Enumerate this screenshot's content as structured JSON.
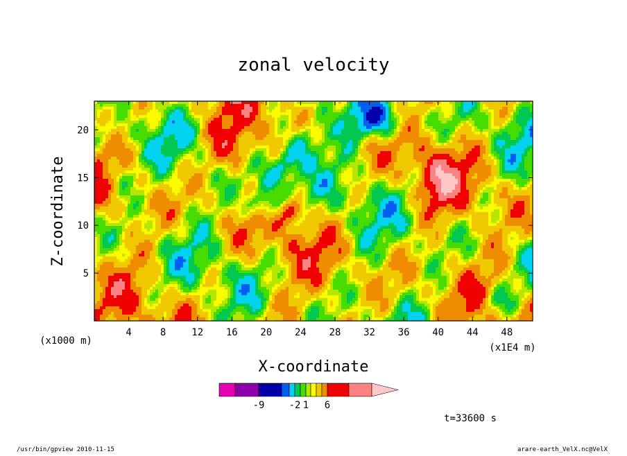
{
  "chart_data": {
    "type": "heatmap",
    "title": "zonal velocity",
    "xlabel": "X-coordinate",
    "ylabel": "Z-coordinate",
    "x_unit": "(x1E4 m)",
    "z_unit": "(x1000 m)",
    "xlim": [
      0,
      51
    ],
    "ylim": [
      0,
      23
    ],
    "x_ticks": [
      4,
      8,
      12,
      16,
      20,
      24,
      28,
      32,
      36,
      40,
      44,
      48
    ],
    "y_ticks": [
      5,
      10,
      15,
      20
    ],
    "colorbar": {
      "colors": [
        "#e600b4",
        "#8c00aa",
        "#0000aa",
        "#005ff0",
        "#00d2f0",
        "#00c850",
        "#46dc00",
        "#b4e600",
        "#fafa00",
        "#f0c800",
        "#f08c00",
        "#f00000",
        "#ff8282",
        "#ffc8c8"
      ],
      "tick_labels": [
        "-9",
        "-2",
        "1",
        "6"
      ]
    },
    "time_label": "t=33600 s"
  },
  "footer": {
    "left": "/usr/bin/gpview  2010-11-15",
    "right": "arare-earth_VelX.nc@VelX"
  },
  "colors": {
    "deep_blue": "#0000aa",
    "blue": "#005ff0",
    "cyan": "#00d2f0",
    "green": "#00c850",
    "light_green": "#46dc00",
    "yellow_green": "#b4e600",
    "yellow": "#fafa00",
    "amber": "#f0c800",
    "orange": "#f08c00",
    "red": "#f00000"
  }
}
